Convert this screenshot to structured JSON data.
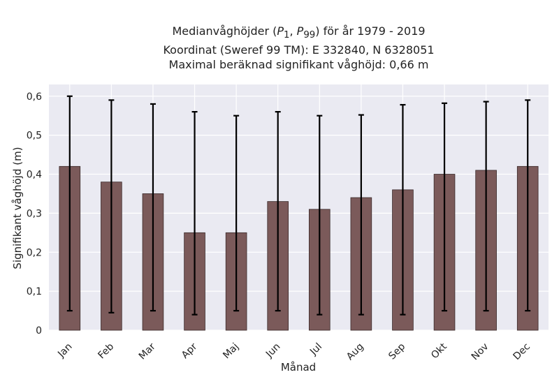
{
  "chart_data": {
    "type": "bar",
    "title_lines": [
      "Medianvåghöjder (P1, P99) för år 1979 - 2019",
      "Koordinat (Sweref 99 TM): E 332840, N 6328051",
      "Maximal beräknad signifikant våghöjd: 0,66 m"
    ],
    "title_parts": {
      "line1_prefix": "Medianvåghöjder (",
      "p1_main": "P",
      "p1_sub": "1",
      "separator": ", ",
      "p99_main": "P",
      "p99_sub": "99",
      "line1_suffix": ") för år 1979 - 2019"
    },
    "xlabel": "Månad",
    "ylabel": "Signifikant våghöjd (m)",
    "categories": [
      "Jan",
      "Feb",
      "Mar",
      "Apr",
      "Maj",
      "Jun",
      "Jul",
      "Aug",
      "Sep",
      "Okt",
      "Nov",
      "Dec"
    ],
    "values": [
      0.42,
      0.38,
      0.35,
      0.25,
      0.25,
      0.33,
      0.31,
      0.34,
      0.36,
      0.4,
      0.41,
      0.42
    ],
    "p1": [
      0.05,
      0.045,
      0.05,
      0.04,
      0.05,
      0.05,
      0.04,
      0.04,
      0.04,
      0.05,
      0.05,
      0.05
    ],
    "p99": [
      0.6,
      0.59,
      0.58,
      0.56,
      0.55,
      0.56,
      0.55,
      0.552,
      0.578,
      0.582,
      0.586,
      0.59
    ],
    "ylim": [
      0,
      0.63
    ],
    "yticks": [
      0,
      0.1,
      0.2,
      0.3,
      0.4,
      0.5,
      0.6
    ],
    "ytick_labels": [
      "0",
      "0,1",
      "0,2",
      "0,3",
      "0,4",
      "0,5",
      "0,6"
    ],
    "grid": true,
    "colors": {
      "bar": "#7b5a5a",
      "bar_edge": "#3a2a2a",
      "errorbar": "#000000",
      "plot_background": "#eaeaf2",
      "grid": "#ffffff"
    }
  }
}
